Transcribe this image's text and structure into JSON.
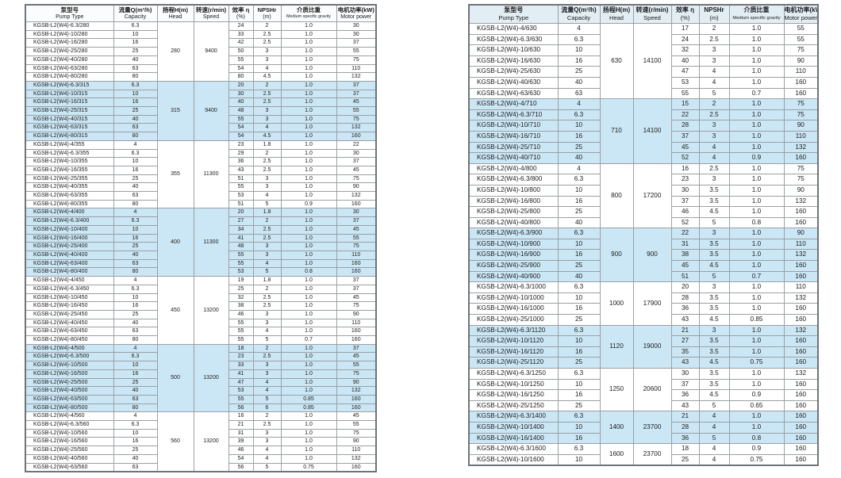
{
  "columns": {
    "pump_type": {
      "zh": "泵型号",
      "en": "Pump Type"
    },
    "capacity": {
      "zh": "流量Q(m³/h)",
      "en": "Capacity"
    },
    "head": {
      "zh": "扬程H(m)",
      "en": "Head"
    },
    "speed": {
      "zh": "转速(r/min)",
      "en": "Speed"
    },
    "efficiency": {
      "zh": "效率 η",
      "en": "(%)"
    },
    "npshr": {
      "zh": "NPSHr",
      "en": "(m)"
    },
    "gravity": {
      "zh": "介质比重",
      "en": "Medium specific gravity"
    },
    "power": {
      "zh": "电机功率(kW)",
      "en": "Motor power"
    }
  },
  "colors": {
    "row_highlight": "#cbe7f5",
    "header_bg_right": "#e2edf4",
    "border": "#9aa0a4",
    "outer_border": "#6e7478",
    "text": "#1b1b1b"
  },
  "left_table": {
    "groups": [
      {
        "head": "280",
        "speed": "9400",
        "highlighted": false,
        "rows": [
          [
            "KGSB-L2(W4)-6.3/280",
            "6.3",
            "24",
            "2",
            "1.0",
            "30"
          ],
          [
            "KGSB-L2(W4)-10/280",
            "10",
            "33",
            "2.5",
            "1.0",
            "30"
          ],
          [
            "KGSB-L2(W4)-16/280",
            "16",
            "42",
            "2.5",
            "1.0",
            "37"
          ],
          [
            "KGSB-L2(W4)-25/280",
            "25",
            "50",
            "3",
            "1.0",
            "55"
          ],
          [
            "KGSB-L2(W4)-40/280",
            "40",
            "55",
            "3",
            "1.0",
            "75"
          ],
          [
            "KGSB-L2(W4)-63/280",
            "63",
            "54",
            "4",
            "1.0",
            "110"
          ],
          [
            "KGSB-L2(W4)-80/280",
            "80",
            "80",
            "4.5",
            "1.0",
            "132"
          ]
        ]
      },
      {
        "head": "315",
        "speed": "9400",
        "highlighted": true,
        "rows": [
          [
            "KGSB-L2(W4)-6.3/315",
            "6.3",
            "20",
            "2",
            "1.0",
            "37"
          ],
          [
            "KGSB-L2(W4)-10/315",
            "10",
            "30",
            "2.5",
            "1.0",
            "37"
          ],
          [
            "KGSB-L2(W4)-16/315",
            "16",
            "40",
            "2.5",
            "1.0",
            "45"
          ],
          [
            "KGSB-L2(W4)-25/315",
            "25",
            "48",
            "3",
            "1.0",
            "55"
          ],
          [
            "KGSB-L2(W4)-40/315",
            "40",
            "55",
            "3",
            "1.0",
            "75"
          ],
          [
            "KGSB-L2(W4)-63/315",
            "63",
            "54",
            "4",
            "1.0",
            "132"
          ],
          [
            "KGSB-L2(W4)-80/315",
            "80",
            "54",
            "4.5",
            "1.0",
            "160"
          ]
        ]
      },
      {
        "head": "355",
        "speed": "11300",
        "highlighted": false,
        "rows": [
          [
            "KGSB-L2(W4)-4/355",
            "4",
            "23",
            "1.8",
            "1.0",
            "22"
          ],
          [
            "KGSB-L2(W4)-6.3/355",
            "6.3",
            "29",
            "2",
            "1.0",
            "30"
          ],
          [
            "KGSB-L2(W4)-10/355",
            "10",
            "36",
            "2.5",
            "1.0",
            "37"
          ],
          [
            "KGSB-L2(W4)-16/355",
            "16",
            "43",
            "2.5",
            "1.0",
            "45"
          ],
          [
            "KGSB-L2(W4)-25/355",
            "25",
            "51",
            "3",
            "1.0",
            "75"
          ],
          [
            "KGSB-L2(W4)-40/355",
            "40",
            "55",
            "3",
            "1.0",
            "90"
          ],
          [
            "KGSB-L2(W4)-63/355",
            "63",
            "53",
            "4",
            "1.0",
            "132"
          ],
          [
            "KGSB-L2(W4)-80/355",
            "80",
            "51",
            "5",
            "0.9",
            "160"
          ]
        ]
      },
      {
        "head": "400",
        "speed": "11300",
        "highlighted": true,
        "rows": [
          [
            "KGSB-L2(W4)-4/400",
            "4",
            "20",
            "1.8",
            "1.0",
            "30"
          ],
          [
            "KGSB-L2(W4)-6.3/400",
            "6.3",
            "27",
            "2",
            "1.0",
            "37"
          ],
          [
            "KGSB-L2(W4)-10/400",
            "10",
            "34",
            "2.5",
            "1.0",
            "45"
          ],
          [
            "KGSB-L2(W4)-16/400",
            "16",
            "41",
            "2.5",
            "1.0",
            "55"
          ],
          [
            "KGSB-L2(W4)-25/400",
            "25",
            "48",
            "3",
            "1.0",
            "75"
          ],
          [
            "KGSB-L2(W4)-40/400",
            "40",
            "55",
            "3",
            "1.0",
            "110"
          ],
          [
            "KGSB-L2(W4)-63/400",
            "63",
            "55",
            "4",
            "1.0",
            "160"
          ],
          [
            "KGSB-L2(W4)-80/400",
            "80",
            "53",
            "5",
            "0.8",
            "160"
          ]
        ]
      },
      {
        "head": "450",
        "speed": "13200",
        "highlighted": false,
        "rows": [
          [
            "KGSB-L2(W4)-4/450",
            "4",
            "19",
            "1.8",
            "1.0",
            "37"
          ],
          [
            "KGSB-L2(W4)-6.3/450",
            "6.3",
            "25",
            "2",
            "1.0",
            "37"
          ],
          [
            "KGSB-L2(W4)-10/450",
            "10",
            "32",
            "2.5",
            "1.0",
            "45"
          ],
          [
            "KGSB-L2(W4)-16/450",
            "16",
            "38",
            "2.5",
            "1.0",
            "75"
          ],
          [
            "KGSB-L2(W4)-25/450",
            "25",
            "46",
            "3",
            "1.0",
            "90"
          ],
          [
            "KGSB-L2(W4)-40/450",
            "40",
            "55",
            "3",
            "1.0",
            "110"
          ],
          [
            "KGSB-L2(W4)-63/450",
            "63",
            "55",
            "4",
            "1.0",
            "160"
          ],
          [
            "KGSB-L2(W4)-80/450",
            "80",
            "55",
            "5",
            "0.7",
            "160"
          ]
        ]
      },
      {
        "head": "500",
        "speed": "13200",
        "highlighted": true,
        "rows": [
          [
            "KGSB-L2(W4)-4/500",
            "4",
            "18",
            "2",
            "1.0",
            "37"
          ],
          [
            "KGSB-L2(W4)-6.3/500",
            "6.3",
            "23",
            "2.5",
            "1.0",
            "45"
          ],
          [
            "KGSB-L2(W4)-10/500",
            "10",
            "33",
            "3",
            "1.0",
            "55"
          ],
          [
            "KGSB-L2(W4)-16/500",
            "16",
            "41",
            "3",
            "1.0",
            "75"
          ],
          [
            "KGSB-L2(W4)-25/500",
            "25",
            "47",
            "4",
            "1.0",
            "90"
          ],
          [
            "KGSB-L2(W4)-40/500",
            "40",
            "53",
            "4",
            "1.0",
            "132"
          ],
          [
            "KGSB-L2(W4)-63/500",
            "63",
            "55",
            "5",
            "0.85",
            "160"
          ],
          [
            "KGSB-L2(W4)-80/500",
            "80",
            "56",
            "6",
            "0.85",
            "160"
          ]
        ]
      },
      {
        "head": "560",
        "speed": "13200",
        "highlighted": false,
        "rows": [
          [
            "KGSB-L2(W4)-4/560",
            "4",
            "16",
            "2",
            "1.0",
            "45"
          ],
          [
            "KGSB-L2(W4)-6.3/560",
            "6.3",
            "21",
            "2.5",
            "1.0",
            "55"
          ],
          [
            "KGSB-L2(W4)-10/560",
            "10",
            "31",
            "3",
            "1.0",
            "75"
          ],
          [
            "KGSB-L2(W4)-16/560",
            "16",
            "39",
            "3",
            "1.0",
            "90"
          ],
          [
            "KGSB-L2(W4)-25/560",
            "25",
            "46",
            "4",
            "1.0",
            "110"
          ],
          [
            "KGSB-L2(W4)-40/560",
            "40",
            "54",
            "4",
            "1.0",
            "132"
          ],
          [
            "KGSB-L2(W4)-63/560",
            "63",
            "56",
            "5",
            "0.75",
            "160"
          ]
        ]
      }
    ]
  },
  "right_table": {
    "groups": [
      {
        "head": "630",
        "speed": "14100",
        "highlighted": false,
        "rows": [
          [
            "KGSB-L2(W4)-4/630",
            "4",
            "17",
            "2",
            "1.0",
            "55"
          ],
          [
            "KGSB-L2(W4)-6.3/630",
            "6.3",
            "24",
            "2.5",
            "1.0",
            "55"
          ],
          [
            "KGSB-L2(W4)-10/630",
            "10",
            "32",
            "3",
            "1.0",
            "75"
          ],
          [
            "KGSB-L2(W4)-16/630",
            "16",
            "40",
            "3",
            "1.0",
            "90"
          ],
          [
            "KGSB-L2(W4)-25/630",
            "25",
            "47",
            "4",
            "1.0",
            "110"
          ],
          [
            "KGSB-L2(W4)-40/630",
            "40",
            "53",
            "4",
            "1.0",
            "160"
          ],
          [
            "KGSB-L2(W4)-63/630",
            "63",
            "55",
            "5",
            "0.7",
            "160"
          ]
        ]
      },
      {
        "head": "710",
        "speed": "14100",
        "highlighted": true,
        "rows": [
          [
            "KGSB-L2(W4)-4/710",
            "4",
            "15",
            "2",
            "1.0",
            "75"
          ],
          [
            "KGSB-L2(W4)-6.3/710",
            "6.3",
            "22",
            "2.5",
            "1.0",
            "75"
          ],
          [
            "KGSB-L2(W4)-10/710",
            "10",
            "28",
            "3",
            "1.0",
            "90"
          ],
          [
            "KGSB-L2(W4)-16/710",
            "16",
            "37",
            "3",
            "1.0",
            "110"
          ],
          [
            "KGSB-L2(W4)-25/710",
            "25",
            "45",
            "4",
            "1.0",
            "132"
          ],
          [
            "KGSB-L2(W4)-40/710",
            "40",
            "52",
            "4",
            "0.9",
            "160"
          ]
        ]
      },
      {
        "head": "800",
        "speed": "17200",
        "highlighted": false,
        "rows": [
          [
            "KGSB-L2(W4)-4/800",
            "4",
            "16",
            "2.5",
            "1.0",
            "75"
          ],
          [
            "KGSB-L2(W4)-6.3/800",
            "6.3",
            "23",
            "3",
            "1.0",
            "75"
          ],
          [
            "KGSB-L2(W4)-10/800",
            "10",
            "30",
            "3.5",
            "1.0",
            "90"
          ],
          [
            "KGSB-L2(W4)-16/800",
            "16",
            "37",
            "3.5",
            "1.0",
            "132"
          ],
          [
            "KGSB-L2(W4)-25/800",
            "25",
            "46",
            "4.5",
            "1.0",
            "160"
          ],
          [
            "KGSB-L2(W4)-40/800",
            "40",
            "52",
            "5",
            "0.8",
            "160"
          ]
        ]
      },
      {
        "head": "900",
        "speed": "900",
        "highlighted": true,
        "rows": [
          [
            "KGSB-L2(W4)-6.3/900",
            "6.3",
            "22",
            "3",
            "1.0",
            "90"
          ],
          [
            "KGSB-L2(W4)-10/900",
            "10",
            "31",
            "3.5",
            "1.0",
            "110"
          ],
          [
            "KGSB-L2(W4)-16/900",
            "16",
            "38",
            "3.5",
            "1.0",
            "132"
          ],
          [
            "KGSB-L2(W4)-25/900",
            "25",
            "45",
            "4.5",
            "1.0",
            "160"
          ],
          [
            "KGSB-L2(W4)-40/900",
            "40",
            "51",
            "5",
            "0.7",
            "160"
          ]
        ]
      },
      {
        "head": "1000",
        "speed": "17900",
        "highlighted": false,
        "rows": [
          [
            "KGSB-L2(W4)-6.3/1000",
            "6.3",
            "20",
            "3",
            "1.0",
            "110"
          ],
          [
            "KGSB-L2(W4)-10/1000",
            "10",
            "28",
            "3.5",
            "1.0",
            "132"
          ],
          [
            "KGSB-L2(W4)-16/1000",
            "16",
            "36",
            "3.5",
            "1.0",
            "160"
          ],
          [
            "KGSB-L2(W4)-25/1000",
            "25",
            "43",
            "4.5",
            "0.85",
            "160"
          ]
        ]
      },
      {
        "head": "1120",
        "speed": "19000",
        "highlighted": true,
        "rows": [
          [
            "KGSB-L2(W4)-6.3/1120",
            "6.3",
            "21",
            "3",
            "1.0",
            "132"
          ],
          [
            "KGSB-L2(W4)-10/1120",
            "10",
            "27",
            "3.5",
            "1.0",
            "160"
          ],
          [
            "KGSB-L2(W4)-16/1120",
            "16",
            "35",
            "3.5",
            "1.0",
            "160"
          ],
          [
            "KGSB-L2(W4)-25/1120",
            "25",
            "43",
            "4.5",
            "0.75",
            "160"
          ]
        ]
      },
      {
        "head": "1250",
        "speed": "20600",
        "highlighted": false,
        "rows": [
          [
            "KGSB-L2(W4)-6.3/1250",
            "6.3",
            "30",
            "3.5",
            "1.0",
            "132"
          ],
          [
            "KGSB-L2(W4)-10/1250",
            "10",
            "37",
            "3.5",
            "1.0",
            "160"
          ],
          [
            "KGSB-L2(W4)-16/1250",
            "16",
            "36",
            "4.5",
            "0.9",
            "160"
          ],
          [
            "KGSB-L2(W4)-25/1250",
            "25",
            "43",
            "5",
            "0.65",
            "160"
          ]
        ]
      },
      {
        "head": "1400",
        "speed": "23700",
        "highlighted": true,
        "rows": [
          [
            "KGSB-L2(W4)-6.3/1400",
            "6.3",
            "21",
            "4",
            "1.0",
            "160"
          ],
          [
            "KGSB-L2(W4)-10/1400",
            "10",
            "28",
            "4",
            "1.0",
            "160"
          ],
          [
            "KGSB-L2(W4)-16/1400",
            "16",
            "36",
            "5",
            "0.8",
            "160"
          ]
        ]
      },
      {
        "head": "1600",
        "speed": "23700",
        "highlighted": false,
        "rows": [
          [
            "KGSB-L2(W4)-6.3/1600",
            "6.3",
            "18",
            "4",
            "0.9",
            "160"
          ],
          [
            "KGSB-L2(W4)-10/1600",
            "10",
            "25",
            "4",
            "0.75",
            "160"
          ]
        ]
      }
    ]
  }
}
